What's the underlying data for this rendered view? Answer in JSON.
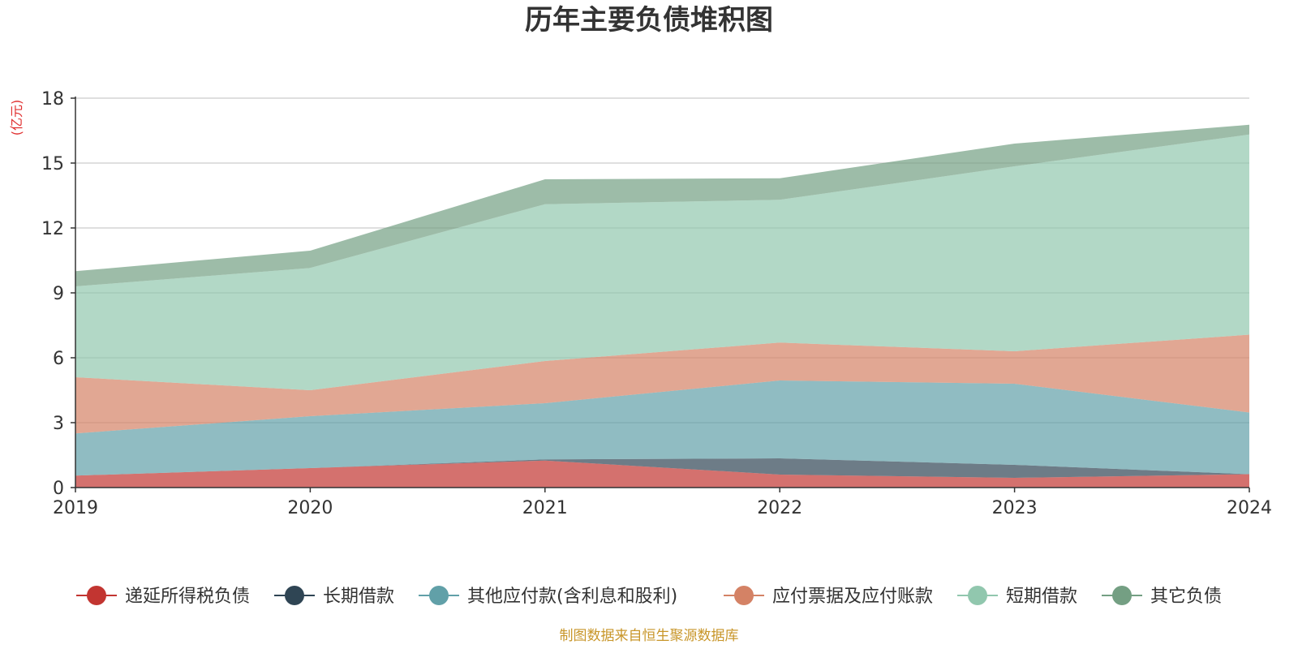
{
  "chart_data": {
    "type": "area",
    "stacked": true,
    "title": "历年主要负债堆积图",
    "unit_label": "(亿元)",
    "x": [
      "2019",
      "2020",
      "2021",
      "2022",
      "2023",
      "2024"
    ],
    "ylim": [
      0,
      18
    ],
    "yticks": [
      0,
      3,
      6,
      9,
      12,
      15,
      18
    ],
    "grid": true,
    "legend_position": "bottom",
    "source": "制图数据来自恒生聚源数据库",
    "series": [
      {
        "name": "递延所得税负债",
        "color": "#c23531",
        "values": [
          0.55,
          0.9,
          1.25,
          0.6,
          0.45,
          0.62
        ]
      },
      {
        "name": "长期借款",
        "color": "#2f4554",
        "values": [
          0,
          0,
          0.05,
          0.75,
          0.6,
          0
        ]
      },
      {
        "name": "其他应付款(含利息和股利)",
        "color": "#61a0a8",
        "values": [
          1.95,
          2.4,
          2.6,
          3.6,
          3.75,
          2.85
        ]
      },
      {
        "name": "应付票据及应付账款",
        "color": "#d48265",
        "values": [
          2.6,
          1.2,
          1.95,
          1.75,
          1.5,
          3.6
        ]
      },
      {
        "name": "短期借款",
        "color": "#91c7ae",
        "values": [
          4.2,
          5.65,
          7.25,
          6.6,
          8.55,
          9.25
        ]
      },
      {
        "name": "其它负债",
        "color": "#749f83",
        "values": [
          0.7,
          0.8,
          1.15,
          1.0,
          1.05,
          0.45
        ]
      }
    ]
  }
}
